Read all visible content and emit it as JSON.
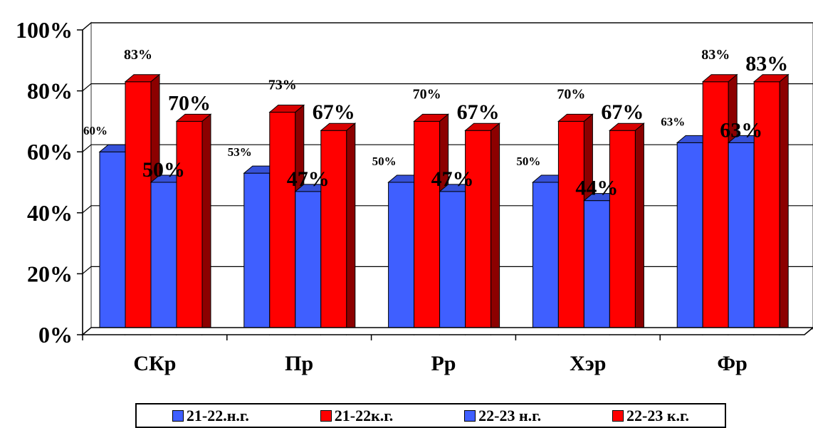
{
  "chart_data": {
    "type": "bar",
    "categories": [
      "СКр",
      "Пр",
      "Рр",
      "Хэр",
      "Фр"
    ],
    "series": [
      {
        "name": "21-22.н.г.",
        "color": "#3f5fff",
        "values": [
          60,
          53,
          50,
          50,
          63
        ],
        "labels": [
          "60%",
          "53%",
          "50%",
          "50%",
          "63%"
        ]
      },
      {
        "name": "21-22к.г.",
        "color": "#ff0000",
        "values": [
          83,
          73,
          70,
          70,
          83
        ],
        "labels": [
          "83%",
          "73%",
          "70%",
          "70%",
          "83%"
        ]
      },
      {
        "name": "22-23 н.г.",
        "color": "#3f5fff",
        "values": [
          50,
          47,
          47,
          44,
          63
        ],
        "labels": [
          "50%",
          "47%",
          "47%",
          "44%",
          "63%"
        ]
      },
      {
        "name": "22-23 к.г.",
        "color": "#ff0000",
        "values": [
          70,
          67,
          67,
          67,
          83
        ],
        "labels": [
          "70%",
          "67%",
          "67%",
          "67%",
          "83%"
        ]
      }
    ],
    "yticks": [
      "0%",
      "20%",
      "40%",
      "60%",
      "80%",
      "100%"
    ],
    "ylim": [
      0,
      100
    ],
    "grid": true,
    "legend": "bottom"
  }
}
